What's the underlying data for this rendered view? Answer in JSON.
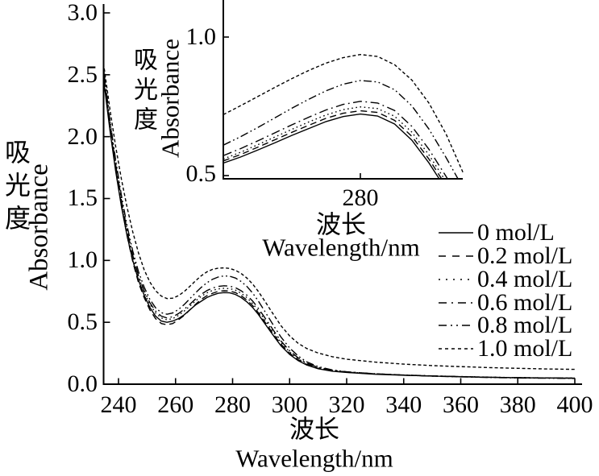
{
  "colors": {
    "ink": "#000000",
    "background": "#ffffff"
  },
  "labels": {
    "x_zh": "波长",
    "x_en": "Wavelength/nm",
    "y_zh": "吸光度",
    "y_en": "Absorbance"
  },
  "legend": {
    "entries": [
      {
        "label": "0 mol/L",
        "style": "solid"
      },
      {
        "label": "0.2 mol/L",
        "style": "dashed"
      },
      {
        "label": "0.4 mol/L",
        "style": "dotted"
      },
      {
        "label": "0.6 mol/L",
        "style": "dashdot"
      },
      {
        "label": "0.8 mol/L",
        "style": "dashdotdot"
      },
      {
        "label": "1.0 mol/L",
        "style": "densedash"
      }
    ]
  },
  "chart_data": [
    {
      "id": "main",
      "type": "line",
      "title": "",
      "xlabel": "波长 Wavelength/nm",
      "ylabel": "吸光度 Absorbance",
      "xlim": [
        235,
        400
      ],
      "ylim": [
        0.0,
        3.0
      ],
      "grid": false,
      "legend_position": "right-inside",
      "xticks": [
        240,
        260,
        280,
        300,
        320,
        340,
        360,
        380,
        400
      ],
      "xtick_labels": [
        "240",
        "260",
        "280",
        "300",
        "320",
        "340",
        "360",
        "380",
        "400"
      ],
      "yticks": [
        0.0,
        0.5,
        1.0,
        1.5,
        2.0,
        2.5,
        3.0
      ],
      "ytick_labels": [
        "0.0",
        "0.5",
        "1.0",
        "1.5",
        "2.0",
        "2.5",
        "3.0"
      ],
      "x": [
        235,
        237,
        239,
        241,
        243,
        245,
        247,
        249,
        251,
        253,
        255,
        257,
        259,
        261,
        263,
        265,
        267,
        269,
        271,
        273,
        275,
        277,
        279,
        281,
        283,
        285,
        287,
        289,
        291,
        293,
        295,
        297,
        300,
        303,
        306,
        310,
        315,
        320,
        330,
        340,
        350,
        360,
        370,
        380,
        390,
        400
      ],
      "series": [
        {
          "name": "0 mol/L",
          "style": "solid",
          "values": [
            2.42,
            2.05,
            1.72,
            1.44,
            1.2,
            1.0,
            0.84,
            0.72,
            0.62,
            0.55,
            0.51,
            0.5,
            0.51,
            0.53,
            0.56,
            0.6,
            0.64,
            0.67,
            0.7,
            0.72,
            0.735,
            0.74,
            0.738,
            0.725,
            0.7,
            0.665,
            0.62,
            0.565,
            0.5,
            0.435,
            0.37,
            0.31,
            0.24,
            0.19,
            0.155,
            0.125,
            0.105,
            0.095,
            0.08,
            0.072,
            0.066,
            0.06,
            0.056,
            0.052,
            0.05,
            0.048
          ]
        },
        {
          "name": "0.2 mol/L",
          "style": "dashed",
          "values": [
            2.46,
            2.08,
            1.74,
            1.45,
            1.2,
            0.99,
            0.82,
            0.7,
            0.6,
            0.53,
            0.49,
            0.48,
            0.49,
            0.52,
            0.555,
            0.6,
            0.645,
            0.685,
            0.715,
            0.735,
            0.75,
            0.755,
            0.752,
            0.74,
            0.715,
            0.68,
            0.635,
            0.578,
            0.513,
            0.447,
            0.382,
            0.322,
            0.25,
            0.197,
            0.16,
            0.128,
            0.107,
            0.096,
            0.082,
            0.073,
            0.066,
            0.061,
            0.056,
            0.053,
            0.051,
            0.049
          ]
        },
        {
          "name": "0.4 mol/L",
          "style": "dotted",
          "values": [
            2.52,
            2.13,
            1.79,
            1.5,
            1.25,
            1.04,
            0.87,
            0.745,
            0.645,
            0.575,
            0.535,
            0.52,
            0.53,
            0.555,
            0.59,
            0.63,
            0.672,
            0.71,
            0.738,
            0.758,
            0.77,
            0.775,
            0.772,
            0.76,
            0.735,
            0.7,
            0.652,
            0.595,
            0.53,
            0.463,
            0.397,
            0.335,
            0.26,
            0.205,
            0.166,
            0.133,
            0.11,
            0.098,
            0.084,
            0.074,
            0.067,
            0.062,
            0.057,
            0.053,
            0.051,
            0.05
          ]
        },
        {
          "name": "0.6 mol/L",
          "style": "dashdot",
          "values": [
            2.48,
            2.1,
            1.77,
            1.49,
            1.24,
            1.04,
            0.875,
            0.755,
            0.658,
            0.59,
            0.55,
            0.535,
            0.545,
            0.57,
            0.605,
            0.645,
            0.688,
            0.726,
            0.756,
            0.777,
            0.79,
            0.795,
            0.792,
            0.78,
            0.755,
            0.72,
            0.672,
            0.614,
            0.548,
            0.48,
            0.412,
            0.348,
            0.27,
            0.212,
            0.17,
            0.136,
            0.112,
            0.099,
            0.084,
            0.074,
            0.067,
            0.061,
            0.056,
            0.052,
            0.05,
            0.048
          ]
        },
        {
          "name": "0.8 mol/L",
          "style": "dashdotdot",
          "values": [
            2.5,
            2.13,
            1.81,
            1.53,
            1.28,
            1.075,
            0.91,
            0.785,
            0.685,
            0.617,
            0.578,
            0.565,
            0.575,
            0.603,
            0.643,
            0.69,
            0.738,
            0.782,
            0.82,
            0.848,
            0.866,
            0.875,
            0.872,
            0.858,
            0.83,
            0.79,
            0.737,
            0.673,
            0.6,
            0.525,
            0.45,
            0.38,
            0.292,
            0.228,
            0.18,
            0.142,
            0.115,
            0.1,
            0.084,
            0.073,
            0.065,
            0.059,
            0.054,
            0.05,
            0.048,
            0.046
          ]
        },
        {
          "name": "1.0 mol/L",
          "style": "densedash",
          "values": [
            2.55,
            2.22,
            1.92,
            1.66,
            1.43,
            1.23,
            1.06,
            0.925,
            0.825,
            0.755,
            0.712,
            0.692,
            0.695,
            0.715,
            0.748,
            0.79,
            0.835,
            0.876,
            0.908,
            0.928,
            0.938,
            0.94,
            0.935,
            0.92,
            0.895,
            0.858,
            0.81,
            0.75,
            0.682,
            0.61,
            0.54,
            0.472,
            0.39,
            0.33,
            0.288,
            0.252,
            0.222,
            0.202,
            0.178,
            0.162,
            0.15,
            0.142,
            0.134,
            0.128,
            0.123,
            0.12
          ]
        }
      ]
    },
    {
      "id": "inset",
      "type": "line",
      "title": "",
      "xlabel": "波长 Wavelength/nm",
      "ylabel": "吸光度 Absorbance",
      "xlim": [
        260,
        295
      ],
      "ylim": [
        0.5,
        1.0
      ],
      "grid": false,
      "xticks": [
        280
      ],
      "xtick_labels": [
        "280"
      ],
      "yticks": [
        0.5,
        1.0
      ],
      "ytick_labels": [
        "0.5",
        "1.0"
      ],
      "x": [
        260,
        262.5,
        265,
        267.5,
        270,
        272.5,
        275,
        277.5,
        280,
        282.5,
        285,
        287.5,
        290,
        292.5,
        295
      ],
      "series": [
        {
          "name": "0 mol/L",
          "style": "solid",
          "values": [
            0.545,
            0.567,
            0.592,
            0.618,
            0.645,
            0.67,
            0.695,
            0.713,
            0.722,
            0.715,
            0.686,
            0.628,
            0.546,
            0.45,
            0.35
          ]
        },
        {
          "name": "0.2 mol/L",
          "style": "dashed",
          "values": [
            0.553,
            0.576,
            0.602,
            0.629,
            0.656,
            0.682,
            0.707,
            0.725,
            0.734,
            0.728,
            0.699,
            0.642,
            0.56,
            0.463,
            0.363
          ]
        },
        {
          "name": "0.4 mol/L",
          "style": "dotted",
          "values": [
            0.56,
            0.584,
            0.611,
            0.639,
            0.667,
            0.694,
            0.719,
            0.738,
            0.748,
            0.742,
            0.714,
            0.657,
            0.575,
            0.478,
            0.378
          ]
        },
        {
          "name": "0.6 mol/L",
          "style": "dashdot",
          "values": [
            0.572,
            0.597,
            0.625,
            0.654,
            0.683,
            0.711,
            0.737,
            0.757,
            0.768,
            0.762,
            0.735,
            0.678,
            0.595,
            0.497,
            0.395
          ]
        },
        {
          "name": "0.8 mol/L",
          "style": "dashdotdot",
          "values": [
            0.61,
            0.64,
            0.673,
            0.708,
            0.743,
            0.776,
            0.806,
            0.83,
            0.843,
            0.838,
            0.81,
            0.752,
            0.668,
            0.565,
            0.455
          ]
        },
        {
          "name": "1.0 mol/L",
          "style": "densedash",
          "values": [
            0.72,
            0.752,
            0.785,
            0.818,
            0.85,
            0.88,
            0.906,
            0.926,
            0.937,
            0.93,
            0.9,
            0.845,
            0.762,
            0.65,
            0.51
          ]
        }
      ]
    }
  ]
}
